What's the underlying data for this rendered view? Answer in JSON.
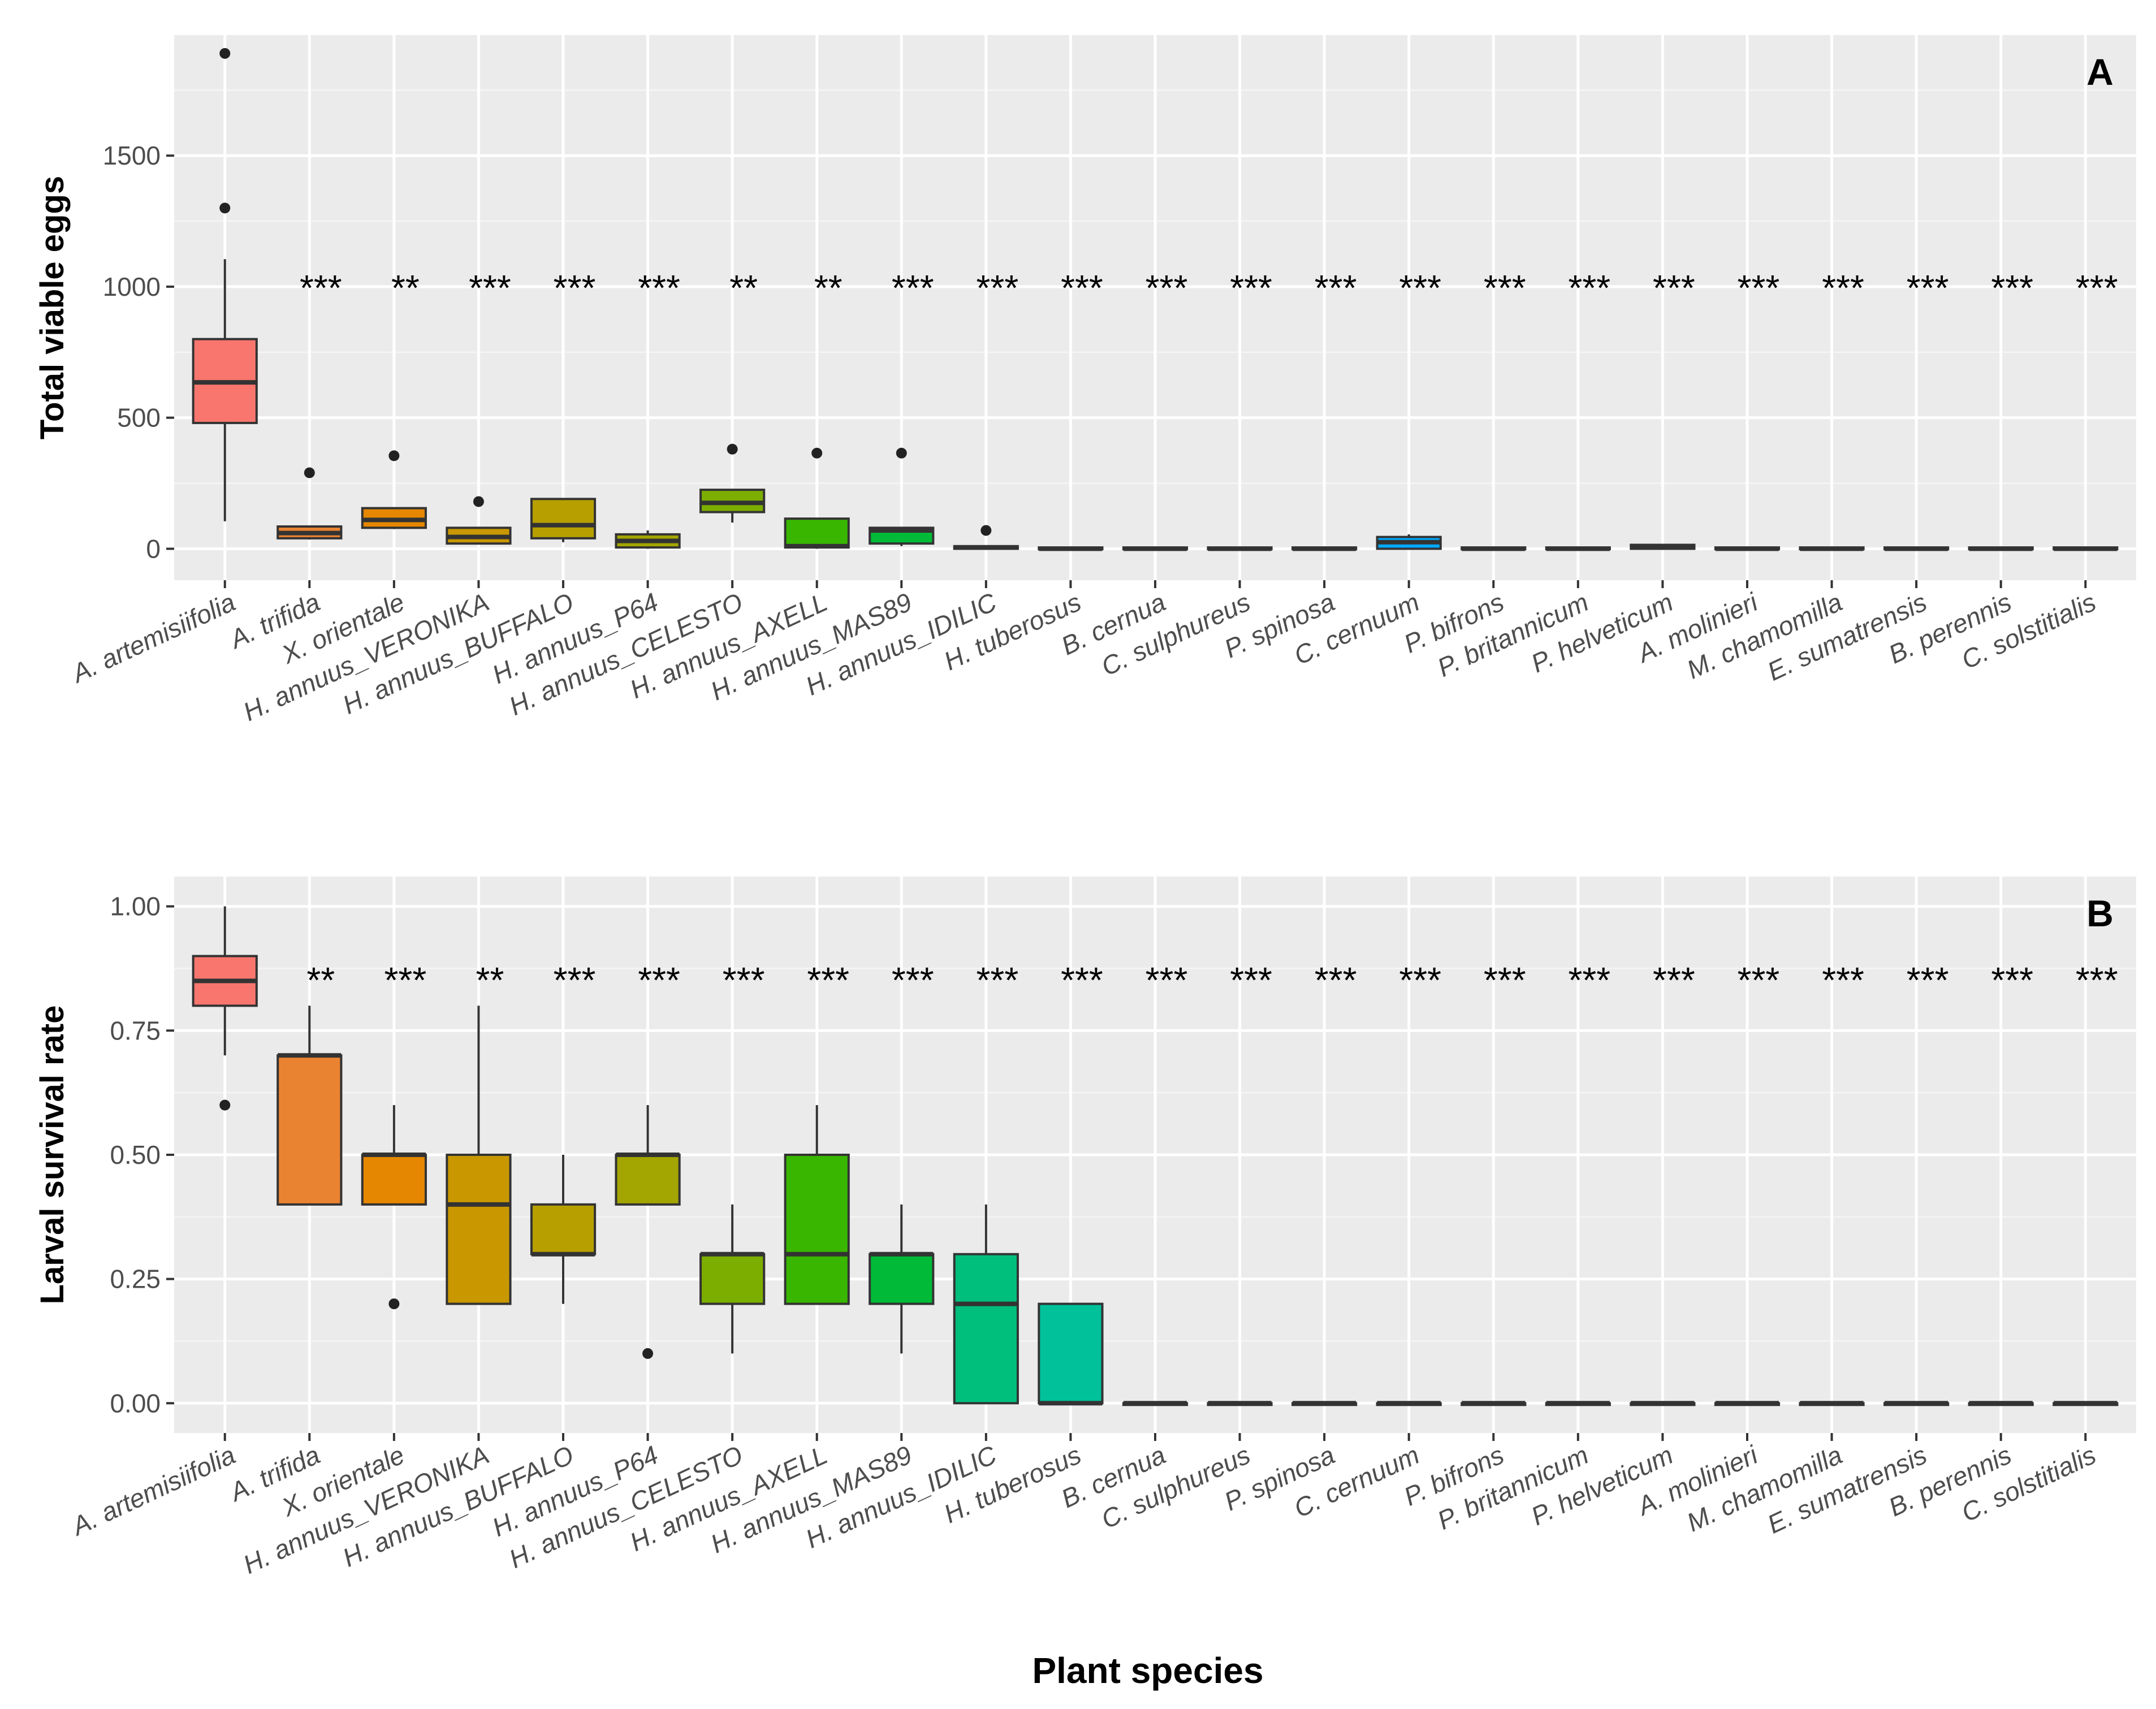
{
  "figure": {
    "xlabel": "Plant species"
  },
  "chart_data": [
    {
      "type": "box",
      "panel": "A",
      "ylabel": "Total viable eggs",
      "ylim": [
        -120,
        1960
      ],
      "yticks": [
        0,
        500,
        1000,
        1500
      ],
      "categories": [
        "A. artemisiifolia",
        "A. trifida",
        "X. orientale",
        "H. annuus_VERONIKA",
        "H. annuus_BUFFALO",
        "H. annuus_P64",
        "H. annuus_CELESTO",
        "H. annuus_AXELL",
        "H. annuus_MAS89",
        "H. annuus_IDILIC",
        "H. tuberosus",
        "B. cernua",
        "C. sulphureus",
        "P. spinosa",
        "C. cernuum",
        "P. bifrons",
        "P. britannicum",
        "P. helveticum",
        "A. molinieri",
        "M. chamomilla",
        "E. sumatrensis",
        "B. perennis",
        "C. solstitialis"
      ],
      "colors": [
        "#F8766D",
        "#EA8331",
        "#E58700",
        "#C99800",
        "#B79F00",
        "#A3A500",
        "#7CAE00",
        "#39B600",
        "#00BA38",
        "#00BF7D",
        "#00C19A",
        "#00C08B",
        "#00BFC4",
        "#00B9E3",
        "#00A9FF",
        "#619CFF",
        "#9590FF",
        "#C77CFF",
        "#E76BF3",
        "#FA62DB",
        "#FF62BC",
        "#FF6C91",
        "#F8766D"
      ],
      "boxes": [
        {
          "min": 105,
          "q1": 480,
          "median": 635,
          "q3": 800,
          "max": 1105,
          "outliers": [
            1890,
            1300
          ]
        },
        {
          "min": 35,
          "q1": 40,
          "median": 60,
          "q3": 85,
          "max": 85,
          "outliers": [
            290
          ]
        },
        {
          "min": 75,
          "q1": 80,
          "median": 110,
          "q3": 155,
          "max": 155,
          "outliers": [
            355
          ]
        },
        {
          "min": 20,
          "q1": 20,
          "median": 45,
          "q3": 80,
          "max": 80,
          "outliers": [
            180
          ]
        },
        {
          "min": 25,
          "q1": 40,
          "median": 90,
          "q3": 190,
          "max": 190,
          "outliers": []
        },
        {
          "min": 0,
          "q1": 5,
          "median": 30,
          "q3": 55,
          "max": 70,
          "outliers": []
        },
        {
          "min": 100,
          "q1": 140,
          "median": 175,
          "q3": 225,
          "max": 225,
          "outliers": [
            380
          ]
        },
        {
          "min": 0,
          "q1": 5,
          "median": 10,
          "q3": 115,
          "max": 115,
          "outliers": [
            365
          ]
        },
        {
          "min": 10,
          "q1": 20,
          "median": 70,
          "q3": 80,
          "max": 80,
          "outliers": [
            365
          ]
        },
        {
          "min": 0,
          "q1": 0,
          "median": 5,
          "q3": 10,
          "max": 10,
          "outliers": [
            70
          ]
        },
        {
          "min": 0,
          "q1": 0,
          "median": 0,
          "q3": 5,
          "max": 5,
          "outliers": []
        },
        {
          "min": 0,
          "q1": 0,
          "median": 0,
          "q3": 5,
          "max": 5,
          "outliers": []
        },
        {
          "min": 0,
          "q1": 0,
          "median": 0,
          "q3": 5,
          "max": 5,
          "outliers": []
        },
        {
          "min": 0,
          "q1": 0,
          "median": 0,
          "q3": 5,
          "max": 5,
          "outliers": []
        },
        {
          "min": 0,
          "q1": 0,
          "median": 25,
          "q3": 45,
          "max": 55,
          "outliers": []
        },
        {
          "min": 0,
          "q1": 0,
          "median": 0,
          "q3": 5,
          "max": 5,
          "outliers": []
        },
        {
          "min": 0,
          "q1": 0,
          "median": 0,
          "q3": 5,
          "max": 5,
          "outliers": []
        },
        {
          "min": 0,
          "q1": 0,
          "median": 5,
          "q3": 15,
          "max": 15,
          "outliers": []
        },
        {
          "min": 0,
          "q1": 0,
          "median": 0,
          "q3": 5,
          "max": 5,
          "outliers": []
        },
        {
          "min": 0,
          "q1": 0,
          "median": 0,
          "q3": 5,
          "max": 5,
          "outliers": []
        },
        {
          "min": 0,
          "q1": 0,
          "median": 0,
          "q3": 5,
          "max": 5,
          "outliers": []
        },
        {
          "min": 0,
          "q1": 0,
          "median": 0,
          "q3": 5,
          "max": 5,
          "outliers": []
        },
        {
          "min": 0,
          "q1": 0,
          "median": 0,
          "q3": 5,
          "max": 5,
          "outliers": []
        }
      ],
      "significance_level": 1030,
      "significance": [
        "",
        "***",
        "**",
        "***",
        "***",
        "***",
        "**",
        "**",
        "***",
        "***",
        "***",
        "***",
        "***",
        "***",
        "***",
        "***",
        "***",
        "***",
        "***",
        "***",
        "***",
        "***",
        "***"
      ]
    },
    {
      "type": "box",
      "panel": "B",
      "ylabel": "Larval survival rate",
      "ylim": [
        -0.06,
        1.06
      ],
      "yticks": [
        0.0,
        0.25,
        0.5,
        0.75,
        1.0
      ],
      "ytick_labels": [
        "0.00",
        "0.25",
        "0.50",
        "0.75",
        "1.00"
      ],
      "categories": [
        "A. artemisiifolia",
        "A. trifida",
        "X. orientale",
        "H. annuus_VERONIKA",
        "H. annuus_BUFFALO",
        "H. annuus_P64",
        "H. annuus_CELESTO",
        "H. annuus_AXELL",
        "H. annuus_MAS89",
        "H. annuus_IDILIC",
        "H. tuberosus",
        "B. cernua",
        "C. sulphureus",
        "P. spinosa",
        "C. cernuum",
        "P. bifrons",
        "P. britannicum",
        "P. helveticum",
        "A. molinieri",
        "M. chamomilla",
        "E. sumatrensis",
        "B. perennis",
        "C. solstitialis"
      ],
      "colors": [
        "#F8766D",
        "#EA8331",
        "#E58700",
        "#C99800",
        "#B79F00",
        "#A3A500",
        "#7CAE00",
        "#39B600",
        "#00BA38",
        "#00BF7D",
        "#00C19A",
        "#00C08B",
        "#00BFC4",
        "#00B9E3",
        "#00A9FF",
        "#619CFF",
        "#9590FF",
        "#C77CFF",
        "#E76BF3",
        "#FA62DB",
        "#FF62BC",
        "#FF6C91",
        "#F8766D"
      ],
      "boxes": [
        {
          "min": 0.7,
          "q1": 0.8,
          "median": 0.85,
          "q3": 0.9,
          "max": 1.0,
          "outliers": [
            0.6
          ]
        },
        {
          "min": 0.4,
          "q1": 0.4,
          "median": 0.7,
          "q3": 0.7,
          "max": 0.8,
          "outliers": []
        },
        {
          "min": 0.4,
          "q1": 0.4,
          "median": 0.5,
          "q3": 0.5,
          "max": 0.6,
          "outliers": [
            0.2
          ]
        },
        {
          "min": 0.2,
          "q1": 0.2,
          "median": 0.4,
          "q3": 0.5,
          "max": 0.8,
          "outliers": []
        },
        {
          "min": 0.2,
          "q1": 0.3,
          "median": 0.3,
          "q3": 0.4,
          "max": 0.5,
          "outliers": []
        },
        {
          "min": 0.4,
          "q1": 0.4,
          "median": 0.5,
          "q3": 0.5,
          "max": 0.6,
          "outliers": [
            0.1
          ]
        },
        {
          "min": 0.1,
          "q1": 0.2,
          "median": 0.3,
          "q3": 0.3,
          "max": 0.4,
          "outliers": []
        },
        {
          "min": 0.2,
          "q1": 0.2,
          "median": 0.3,
          "q3": 0.5,
          "max": 0.6,
          "outliers": []
        },
        {
          "min": 0.1,
          "q1": 0.2,
          "median": 0.3,
          "q3": 0.3,
          "max": 0.4,
          "outliers": []
        },
        {
          "min": 0.0,
          "q1": 0.0,
          "median": 0.2,
          "q3": 0.3,
          "max": 0.4,
          "outliers": []
        },
        {
          "min": 0.0,
          "q1": 0.0,
          "median": 0.0,
          "q3": 0.2,
          "max": 0.2,
          "outliers": []
        },
        {
          "min": 0,
          "q1": 0,
          "median": 0,
          "q3": 0,
          "max": 0,
          "outliers": []
        },
        {
          "min": 0,
          "q1": 0,
          "median": 0,
          "q3": 0,
          "max": 0,
          "outliers": []
        },
        {
          "min": 0,
          "q1": 0,
          "median": 0,
          "q3": 0,
          "max": 0,
          "outliers": []
        },
        {
          "min": 0,
          "q1": 0,
          "median": 0,
          "q3": 0,
          "max": 0,
          "outliers": []
        },
        {
          "min": 0,
          "q1": 0,
          "median": 0,
          "q3": 0,
          "max": 0,
          "outliers": []
        },
        {
          "min": 0,
          "q1": 0,
          "median": 0,
          "q3": 0,
          "max": 0,
          "outliers": []
        },
        {
          "min": 0,
          "q1": 0,
          "median": 0,
          "q3": 0,
          "max": 0,
          "outliers": []
        },
        {
          "min": 0,
          "q1": 0,
          "median": 0,
          "q3": 0,
          "max": 0,
          "outliers": []
        },
        {
          "min": 0,
          "q1": 0,
          "median": 0,
          "q3": 0,
          "max": 0,
          "outliers": []
        },
        {
          "min": 0,
          "q1": 0,
          "median": 0,
          "q3": 0,
          "max": 0,
          "outliers": []
        },
        {
          "min": 0,
          "q1": 0,
          "median": 0,
          "q3": 0,
          "max": 0,
          "outliers": []
        },
        {
          "min": 0,
          "q1": 0,
          "median": 0,
          "q3": 0,
          "max": 0,
          "outliers": []
        }
      ],
      "significance_level": 0.87,
      "significance": [
        "",
        "**",
        "***",
        "**",
        "***",
        "***",
        "***",
        "***",
        "***",
        "***",
        "***",
        "***",
        "***",
        "***",
        "***",
        "***",
        "***",
        "***",
        "***",
        "***",
        "***",
        "***",
        "***"
      ]
    }
  ]
}
